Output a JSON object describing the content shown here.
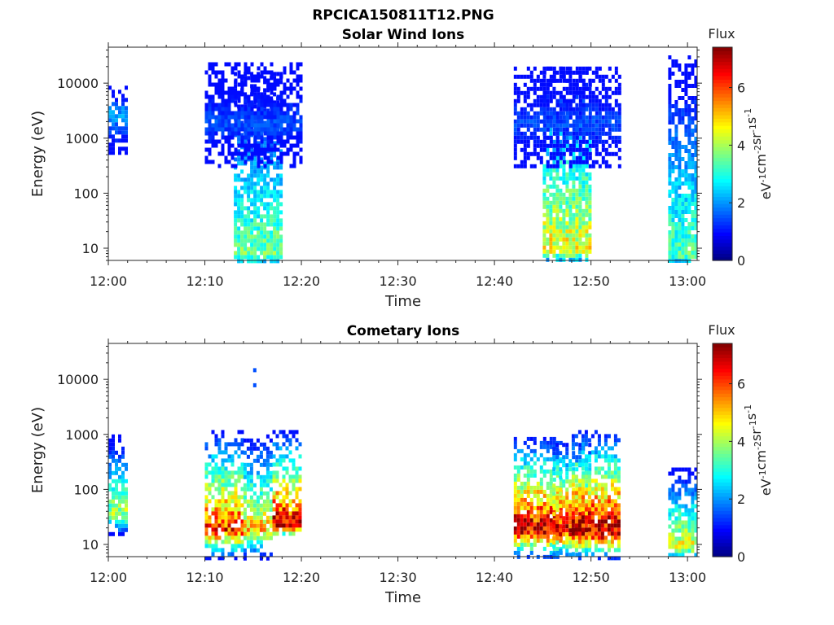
{
  "figure_title": "RPCICA150811T12.PNG",
  "chart_data": [
    {
      "type": "heatmap",
      "title": "Solar Wind Ions",
      "xlabel": "Time",
      "ylabel": "Energy (eV)",
      "yscale": "log",
      "xlim": [
        "12:00",
        "13:01"
      ],
      "ylim": [
        6,
        45000
      ],
      "x_ticks": [
        "12:00",
        "12:10",
        "12:20",
        "12:30",
        "12:40",
        "12:50",
        "13:00"
      ],
      "y_ticks": [
        "10",
        "100",
        "1000",
        "10000"
      ],
      "colorbar": {
        "label": "Flux",
        "unit_label": "eV-1cm-2sr-1s-1",
        "range": [
          0,
          7.4
        ],
        "ticks": [
          "0",
          "2",
          "4",
          "6"
        ],
        "colormap": "jet"
      },
      "grid": false,
      "bursts": [
        {
          "start": "12:00",
          "end": "12:01",
          "emin": 500,
          "emax": 9000,
          "peak_energy": 3000,
          "peak_flux": 2.2
        },
        {
          "start": "12:13",
          "end": "12:17",
          "emin": 6,
          "emax": 16000,
          "peak_energy": 8,
          "peak_flux": 3.6
        },
        {
          "start": "12:10",
          "end": "12:19",
          "emin": 300,
          "emax": 24000,
          "peak_energy": 2000,
          "peak_flux": 1.5
        },
        {
          "start": "12:45",
          "end": "12:49",
          "emin": 6,
          "emax": 20000,
          "peak_energy": 10,
          "peak_flux": 4.6
        },
        {
          "start": "12:42",
          "end": "12:52",
          "emin": 300,
          "emax": 20000,
          "peak_energy": 2000,
          "peak_flux": 1.5
        },
        {
          "start": "12:58",
          "end": "13:01",
          "emin": 6,
          "emax": 32000,
          "peak_energy": 8,
          "peak_flux": 3.4
        }
      ]
    },
    {
      "type": "heatmap",
      "title": "Cometary Ions",
      "xlabel": "Time",
      "ylabel": "Energy (eV)",
      "yscale": "log",
      "xlim": [
        "12:00",
        "13:01"
      ],
      "ylim": [
        6,
        45000
      ],
      "x_ticks": [
        "12:00",
        "12:10",
        "12:20",
        "12:30",
        "12:40",
        "12:50",
        "13:00"
      ],
      "y_ticks": [
        "10",
        "100",
        "1000",
        "10000"
      ],
      "colorbar": {
        "label": "Flux",
        "unit_label": "eV-1cm-2sr-1s-1",
        "range": [
          0,
          7.4
        ],
        "ticks": [
          "0",
          "2",
          "4",
          "6"
        ],
        "colormap": "jet"
      },
      "grid": false,
      "bursts": [
        {
          "start": "12:00",
          "end": "12:01",
          "emin": 15,
          "emax": 1000,
          "peak_energy": 40,
          "peak_flux": 4.0
        },
        {
          "start": "12:10",
          "end": "12:13",
          "emin": 6,
          "emax": 1200,
          "peak_energy": 20,
          "peak_flux": 6.2
        },
        {
          "start": "12:14",
          "end": "12:16",
          "emin": 6,
          "emax": 1000,
          "peak_energy": 20,
          "peak_flux": 5.0
        },
        {
          "start": "12:17",
          "end": "12:19",
          "emin": 15,
          "emax": 1200,
          "peak_energy": 25,
          "peak_flux": 6.8
        },
        {
          "start": "12:42",
          "end": "12:46",
          "emin": 6,
          "emax": 900,
          "peak_energy": 20,
          "peak_flux": 7.0
        },
        {
          "start": "12:46",
          "end": "12:49",
          "emin": 6,
          "emax": 700,
          "peak_energy": 20,
          "peak_flux": 6.8
        },
        {
          "start": "12:48",
          "end": "12:52",
          "emin": 6,
          "emax": 1200,
          "peak_energy": 18,
          "peak_flux": 7.2
        },
        {
          "start": "12:58",
          "end": "13:01",
          "emin": 6,
          "emax": 250,
          "peak_energy": 10,
          "peak_flux": 4.5
        }
      ],
      "isolated_points": [
        {
          "time": "12:15",
          "energy": 16000,
          "flux": 1.5
        },
        {
          "time": "12:15",
          "energy": 8500,
          "flux": 1.5
        }
      ]
    }
  ]
}
